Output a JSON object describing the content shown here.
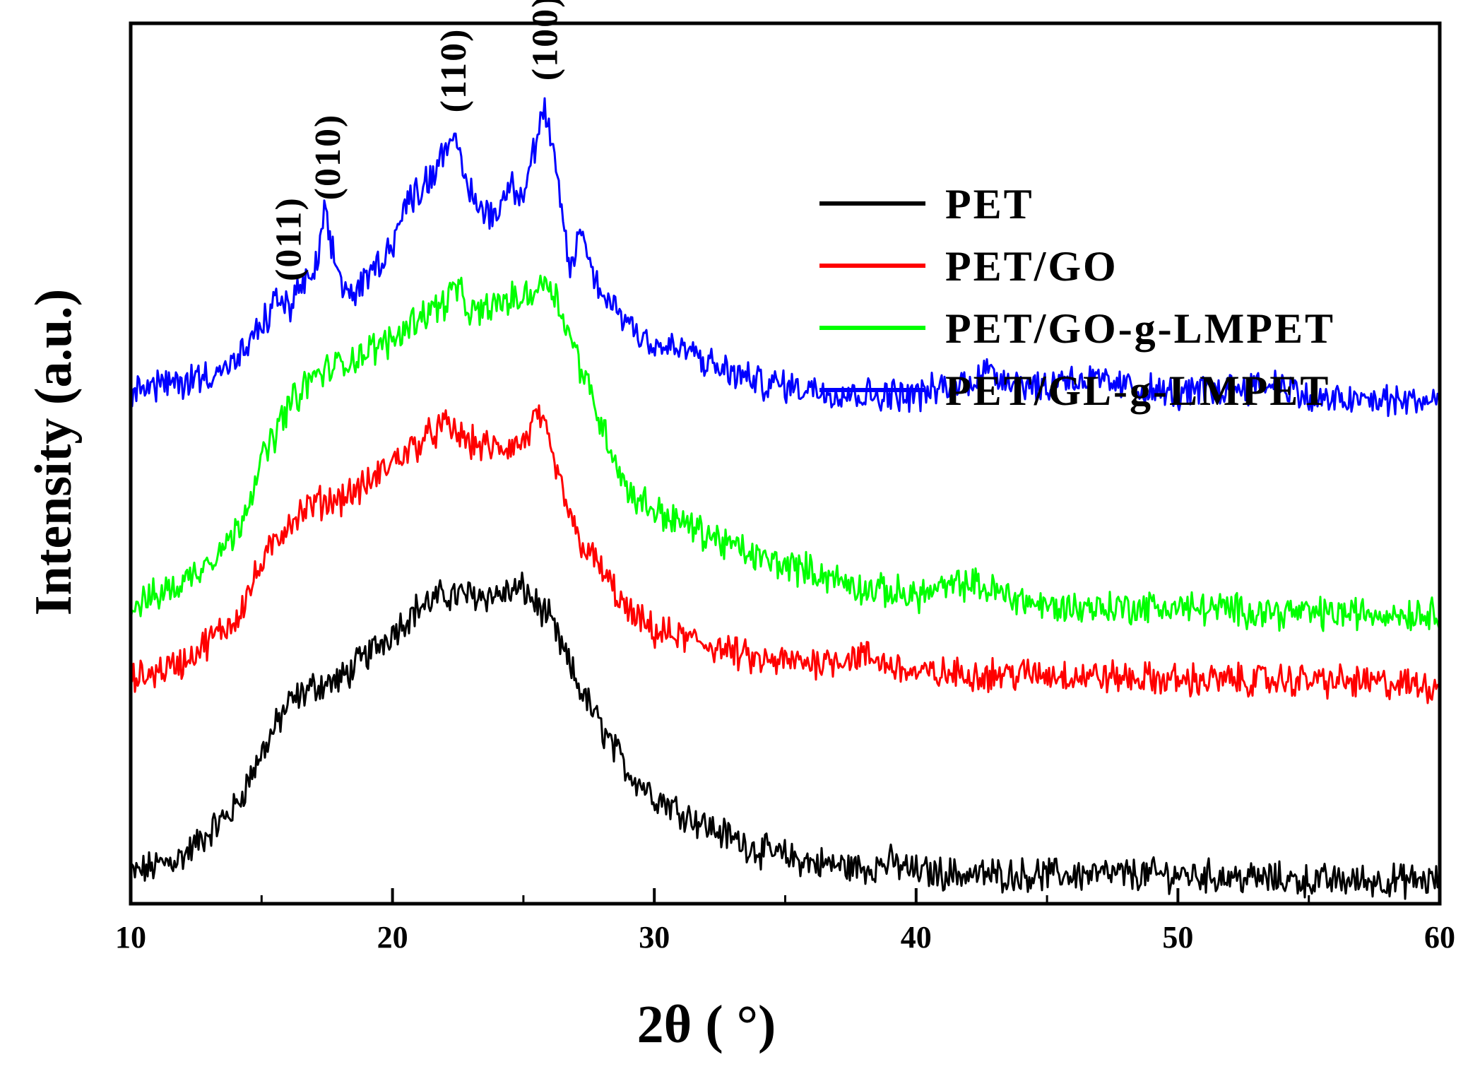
{
  "chart_data": {
    "type": "line",
    "xlabel": "2θ (  °)",
    "ylabel": "Intensity (a.u.)",
    "xlim": [
      10,
      60
    ],
    "xticks": [
      "10",
      "20",
      "30",
      "40",
      "50",
      "60"
    ],
    "y_ticks_shown": false,
    "grid": false,
    "legend_position": "top-right",
    "peak_labels": [
      {
        "text": "(011)",
        "x": 16.0
      },
      {
        "text": "(010)",
        "x": 17.5
      },
      {
        "text": "(110)",
        "x": 22.3
      },
      {
        "text": "(100)",
        "x": 25.8
      }
    ],
    "series": [
      {
        "name": "PET",
        "color": "#000000",
        "x": [
          10,
          12,
          14,
          15,
          16,
          17,
          18,
          19,
          20,
          21,
          22,
          23,
          24,
          25,
          26,
          27,
          28,
          29,
          30,
          32,
          34,
          36,
          38,
          39,
          40,
          42,
          45,
          50,
          55,
          60
        ],
        "y": [
          0.02,
          0.05,
          0.13,
          0.22,
          0.3,
          0.33,
          0.34,
          0.38,
          0.42,
          0.46,
          0.48,
          0.48,
          0.48,
          0.49,
          0.44,
          0.34,
          0.26,
          0.19,
          0.15,
          0.1,
          0.06,
          0.04,
          0.03,
          0.04,
          0.025,
          0.02,
          0.02,
          0.02,
          0.01,
          0.01
        ]
      },
      {
        "name": "PET/GO",
        "color": "#ff0000",
        "x": [
          10,
          12,
          14,
          15,
          16,
          17,
          18,
          19,
          20,
          21,
          22,
          23,
          24,
          25,
          25.6,
          26,
          27,
          28,
          29,
          30,
          32,
          34,
          36,
          38,
          40,
          45,
          50,
          55,
          60
        ],
        "y": [
          0.34,
          0.37,
          0.44,
          0.53,
          0.6,
          0.63,
          0.64,
          0.66,
          0.7,
          0.73,
          0.76,
          0.73,
          0.72,
          0.73,
          0.78,
          0.72,
          0.58,
          0.52,
          0.45,
          0.42,
          0.4,
          0.37,
          0.37,
          0.38,
          0.35,
          0.35,
          0.34,
          0.34,
          0.33
        ]
      },
      {
        "name": "PET/GO-g-LMPET",
        "color": "#00ff00",
        "x": [
          10,
          12,
          14,
          15,
          16,
          17,
          18,
          19,
          20,
          21,
          22,
          22.4,
          23,
          24,
          25,
          26,
          27,
          28,
          29,
          30,
          32,
          34,
          36,
          38,
          40,
          42,
          45,
          50,
          55,
          60
        ],
        "y": [
          0.46,
          0.5,
          0.58,
          0.7,
          0.79,
          0.84,
          0.86,
          0.88,
          0.9,
          0.94,
          0.96,
          0.99,
          0.94,
          0.96,
          0.97,
          1.0,
          0.88,
          0.76,
          0.65,
          0.62,
          0.58,
          0.54,
          0.52,
          0.49,
          0.48,
          0.5,
          0.46,
          0.46,
          0.45,
          0.45
        ]
      },
      {
        "name": "PET/GL-g-LMPET",
        "color": "#0000ff",
        "x": [
          10,
          12,
          14,
          15,
          15.6,
          16,
          16.5,
          17,
          17.4,
          18,
          18.5,
          19,
          20,
          20.5,
          21,
          21.5,
          22.2,
          23,
          23.5,
          24,
          24.5,
          25,
          25.8,
          26.3,
          26.8,
          27.2,
          27.6,
          28,
          29,
          30,
          31.5,
          32,
          34,
          36,
          38,
          40,
          42,
          42.5,
          45,
          45.5,
          50,
          54,
          55,
          58,
          60
        ],
        "y": [
          0.82,
          0.83,
          0.86,
          0.92,
          0.97,
          0.95,
          0.99,
          1.0,
          1.1,
          1.0,
          0.97,
          1.0,
          1.06,
          1.12,
          1.15,
          1.17,
          1.24,
          1.14,
          1.11,
          1.11,
          1.16,
          1.14,
          1.28,
          1.16,
          1.01,
          1.09,
          1.01,
          0.98,
          0.93,
          0.89,
          0.88,
          0.86,
          0.83,
          0.82,
          0.81,
          0.81,
          0.83,
          0.85,
          0.82,
          0.84,
          0.81,
          0.83,
          0.8,
          0.8,
          0.8
        ]
      }
    ]
  }
}
